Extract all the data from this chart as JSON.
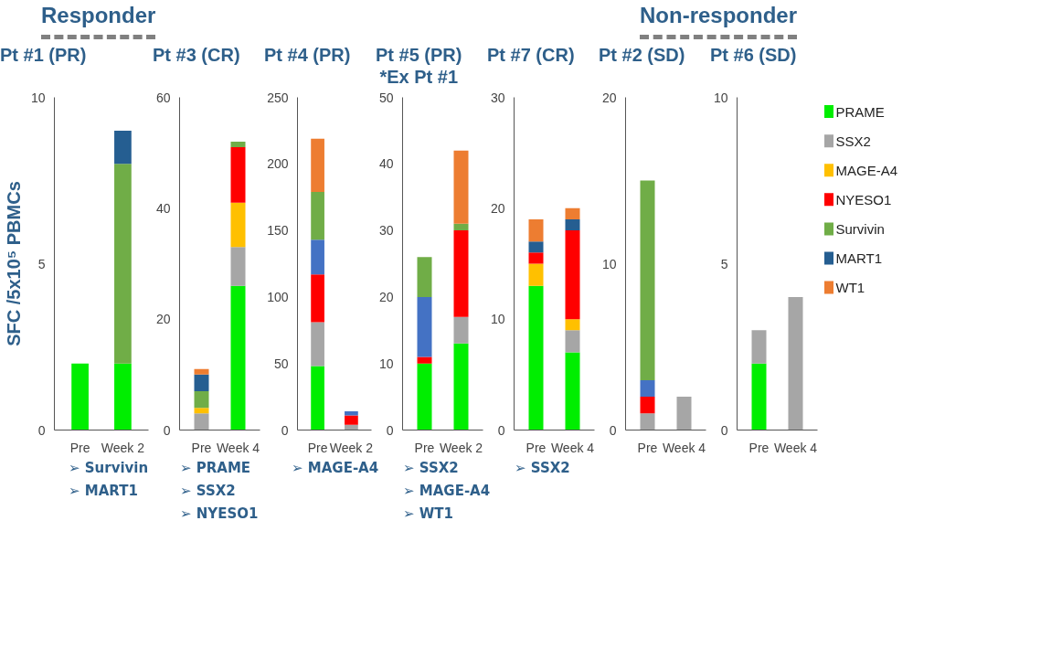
{
  "chart_data": [
    {
      "type": "bar",
      "stacked": true,
      "subtitle": "Responder",
      "title": "Pt #1 (PR)",
      "ylabel": "SFC /5x10⁵ PBMCs",
      "categories": [
        "Pre",
        "Week 2"
      ],
      "ylim": [
        0,
        10
      ],
      "yticks": [
        0,
        5,
        10
      ],
      "legend": false,
      "series": [
        {
          "color": "#00ee00",
          "values": [
            2,
            2
          ]
        },
        {
          "color": "#70ad47",
          "values": [
            null,
            6
          ]
        },
        {
          "color": "#255e91",
          "values": [
            null,
            1
          ]
        }
      ],
      "annotations": [
        "➢ Survivin",
        "➢ MART1"
      ]
    },
    {
      "type": "bar",
      "stacked": true,
      "title": "Pt #3 (CR)",
      "categories": [
        "Pre",
        "Week 4"
      ],
      "ylim": [
        0,
        60
      ],
      "yticks": [
        0,
        20,
        40,
        60
      ],
      "legend": false,
      "series": [
        {
          "color": "#00ee00",
          "values": [
            null,
            26
          ]
        },
        {
          "color": "#a6a6a6",
          "values": [
            3,
            7
          ]
        },
        {
          "color": "#ffc000",
          "values": [
            1,
            8
          ]
        },
        {
          "color": "#ff0000",
          "values": [
            null,
            10
          ]
        },
        {
          "color": "#70ad47",
          "values": [
            3,
            1
          ]
        },
        {
          "color": "#255e91",
          "values": [
            3,
            null
          ]
        },
        {
          "color": "#ed7d31",
          "values": [
            1,
            null
          ]
        }
      ],
      "annotations": [
        "➢ PRAME",
        "➢ SSX2",
        "➢ NYESO1"
      ]
    },
    {
      "type": "bar",
      "stacked": true,
      "title": "Pt #4 (PR)",
      "categories": [
        "Pre",
        "Week 2"
      ],
      "ylim": [
        0,
        250
      ],
      "yticks": [
        0,
        50,
        100,
        150,
        200,
        250
      ],
      "legend": false,
      "series": [
        {
          "color": "#00ee00",
          "values": [
            48,
            null
          ]
        },
        {
          "color": "#a6a6a6",
          "values": [
            33,
            4
          ]
        },
        {
          "color": "#ff0000",
          "values": [
            36,
            7
          ]
        },
        {
          "color": "#4472c4",
          "values": [
            26,
            3
          ]
        },
        {
          "color": "#70ad47",
          "values": [
            36,
            null
          ]
        },
        {
          "color": "#ed7d31",
          "values": [
            40,
            null
          ]
        }
      ],
      "annotations": [
        "➢ MAGE-A4"
      ]
    },
    {
      "type": "bar",
      "stacked": true,
      "title": "Pt #5 (PR)\n*Ex Pt #1",
      "categories": [
        "Pre",
        "Week 2"
      ],
      "ylim": [
        0,
        50
      ],
      "yticks": [
        0,
        10,
        20,
        30,
        40,
        50
      ],
      "legend": false,
      "series": [
        {
          "color": "#00ee00",
          "values": [
            10,
            13
          ]
        },
        {
          "color": "#a6a6a6",
          "values": [
            null,
            4
          ]
        },
        {
          "color": "#ff0000",
          "values": [
            1,
            13
          ]
        },
        {
          "color": "#4472c4",
          "values": [
            9,
            null
          ]
        },
        {
          "color": "#70ad47",
          "values": [
            6,
            1
          ]
        },
        {
          "color": "#ed7d31",
          "values": [
            null,
            11
          ]
        }
      ],
      "annotations": [
        "➢ SSX2",
        "➢ MAGE-A4",
        "➢ WT1"
      ]
    },
    {
      "type": "bar",
      "stacked": true,
      "title": "Pt #7 (CR)",
      "categories": [
        "Pre",
        "Week 4"
      ],
      "ylim": [
        0,
        30
      ],
      "yticks": [
        0,
        10,
        20,
        30
      ],
      "legend": false,
      "series": [
        {
          "color": "#00ee00",
          "values": [
            13,
            7
          ]
        },
        {
          "color": "#a6a6a6",
          "values": [
            null,
            2
          ]
        },
        {
          "color": "#ffc000",
          "values": [
            2,
            1
          ]
        },
        {
          "color": "#ff0000",
          "values": [
            1,
            8
          ]
        },
        {
          "color": "#255e91",
          "values": [
            1,
            1
          ]
        },
        {
          "color": "#ed7d31",
          "values": [
            2,
            1
          ]
        }
      ],
      "annotations": [
        "➢ SSX2"
      ]
    },
    {
      "type": "bar",
      "stacked": true,
      "subtitle": "Non-responder",
      "title": "Pt #2 (SD)",
      "categories": [
        "Pre",
        "Week 4"
      ],
      "ylim": [
        0,
        20
      ],
      "yticks": [
        0,
        10,
        20
      ],
      "legend": false,
      "series": [
        {
          "color": "#a6a6a6",
          "values": [
            1,
            2
          ]
        },
        {
          "color": "#ff0000",
          "values": [
            1,
            null
          ]
        },
        {
          "color": "#4472c4",
          "values": [
            1,
            null
          ]
        },
        {
          "color": "#70ad47",
          "values": [
            12,
            null
          ]
        }
      ]
    },
    {
      "type": "bar",
      "stacked": true,
      "title": "Pt #6 (SD)",
      "categories": [
        "Pre",
        "Week 4"
      ],
      "ylim": [
        0,
        10
      ],
      "yticks": [
        0,
        5,
        10
      ],
      "legend": "right",
      "series": [
        {
          "name": "PRAME",
          "color": "#00ee00",
          "values": [
            2,
            null
          ]
        },
        {
          "name": "SSX2",
          "color": "#a6a6a6",
          "values": [
            1,
            4
          ]
        },
        {
          "name": "MAGE-A4",
          "color": "#ffc000",
          "values": [
            null,
            null
          ]
        },
        {
          "name": "NYESO1",
          "color": "#ff0000",
          "values": [
            null,
            null
          ]
        },
        {
          "name": "Survivin",
          "color": "#70ad47",
          "values": [
            null,
            null
          ]
        },
        {
          "name": "MART1",
          "color": "#255e91",
          "values": [
            null,
            null
          ]
        },
        {
          "name": "WT1",
          "color": "#ed7d31",
          "values": [
            null,
            null
          ]
        }
      ]
    }
  ]
}
